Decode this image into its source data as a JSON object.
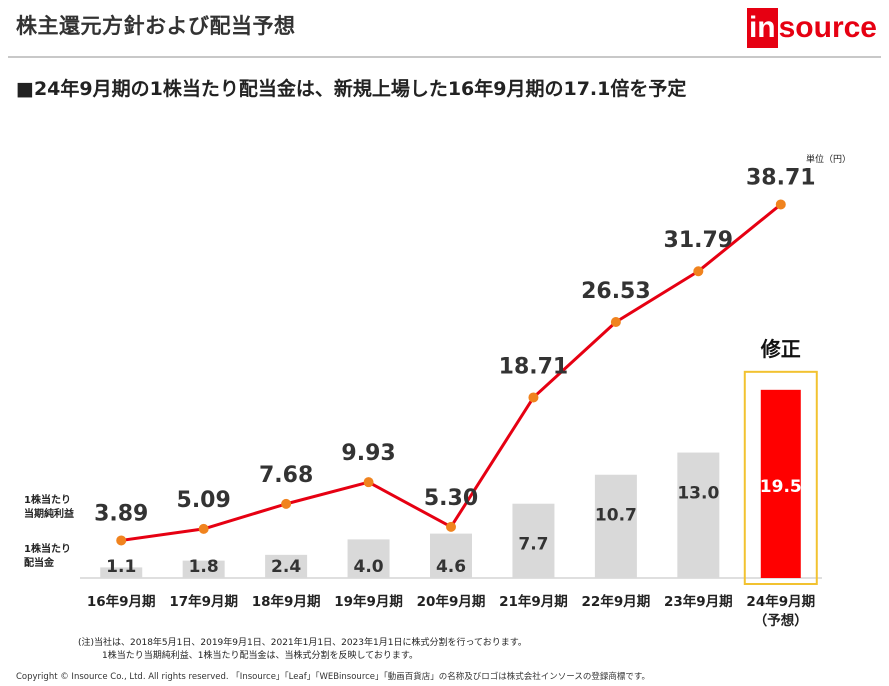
{
  "title": "株主還元方針および配当予想",
  "logo": {
    "accent": "in",
    "rest": "source",
    "color": "#e60012"
  },
  "headline": "■24年9月期の1株当たり配当金は、新規上場した16年9月期の17.1倍を予定",
  "unit_label": "単位（円）",
  "chart_data": {
    "type": "bar+line",
    "categories": [
      "16年9月期",
      "17年9月期",
      "18年9月期",
      "19年9月期",
      "20年9月期",
      "21年9月期",
      "22年9月期",
      "23年9月期",
      "24年9月期"
    ],
    "forecast_sub_label": "（予想）",
    "series": [
      {
        "name": "1株当たり当期純利益",
        "label_lines": [
          "1株当たり",
          "当期純利益"
        ],
        "type": "line",
        "values": [
          3.89,
          5.09,
          7.68,
          9.93,
          5.3,
          18.71,
          26.53,
          31.79,
          38.71
        ],
        "labels": [
          "3.89",
          "5.09",
          "7.68",
          "9.93",
          "5.30",
          "18.71",
          "26.53",
          "31.79",
          "38.71"
        ],
        "color": "#e60012",
        "marker_color": "#f0831e"
      },
      {
        "name": "1株当たり配当金",
        "label_lines": [
          "1株当たり",
          "配当金"
        ],
        "type": "bar",
        "values": [
          1.1,
          1.8,
          2.4,
          4.0,
          4.6,
          7.7,
          10.7,
          13.0,
          19.5
        ],
        "labels": [
          "1.1",
          "1.8",
          "2.4",
          "4.0",
          "4.6",
          "7.7",
          "10.7",
          "13.0",
          "19.5"
        ],
        "color": "#d9d9d9",
        "highlight_color": "#ff0000"
      }
    ],
    "annotation": {
      "text": "修正",
      "box_color": "#f2c230"
    }
  },
  "notes": [
    "(注)当社は、2018年5月1日、2019年9月1日、2021年1月1日、2023年1月1日に株式分割を行っております。",
    "1株当たり当期純利益、1株当たり配当金は、当株式分割を反映しております。"
  ],
  "copyright": "Copyright © Insource Co., Ltd. All rights reserved. 「Insource」「Leaf」「WEBinsource」「動画百貨店」の名称及びロゴは株式会社インソースの登録商標です。"
}
